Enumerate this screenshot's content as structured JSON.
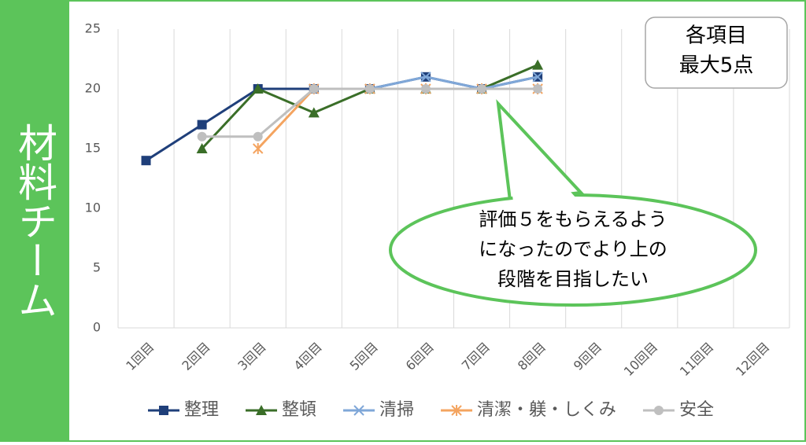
{
  "chart_data": {
    "type": "line",
    "side_label": "材料チーム",
    "note_box": [
      "各項目",
      "最大5点"
    ],
    "callout": [
      "評価５をもらえるよう",
      "になったのでより上の",
      "段階を目指したい"
    ],
    "categories": [
      "1回目",
      "2回目",
      "3回目",
      "4回目",
      "5回目",
      "6回目",
      "7回目",
      "8回目",
      "9回目",
      "10回目",
      "11回目",
      "12回目"
    ],
    "ylim": [
      0,
      25
    ],
    "yticks": [
      0,
      5,
      10,
      15,
      20,
      25
    ],
    "series": [
      {
        "name": "整理",
        "color": "#1f3f7a",
        "marker": "square",
        "values": [
          14,
          17,
          20,
          20,
          20,
          21,
          20,
          21,
          null,
          null,
          null,
          null
        ]
      },
      {
        "name": "整頓",
        "color": "#3a6e28",
        "marker": "triangle",
        "values": [
          null,
          15,
          20,
          18,
          20,
          20,
          20,
          22,
          null,
          null,
          null,
          null
        ]
      },
      {
        "name": "清掃",
        "color": "#7fa7d8",
        "marker": "x",
        "values": [
          null,
          null,
          null,
          20,
          20,
          21,
          20,
          21,
          null,
          null,
          null,
          null
        ]
      },
      {
        "name": "清潔・躾・しくみ",
        "color": "#f4a460",
        "marker": "star",
        "values": [
          null,
          null,
          15,
          20,
          20,
          20,
          20,
          20,
          null,
          null,
          null,
          null
        ]
      },
      {
        "name": "安全",
        "color": "#bfbfbf",
        "marker": "circle",
        "values": [
          null,
          16,
          16,
          20,
          20,
          20,
          20,
          20,
          null,
          null,
          null,
          null
        ]
      }
    ]
  }
}
